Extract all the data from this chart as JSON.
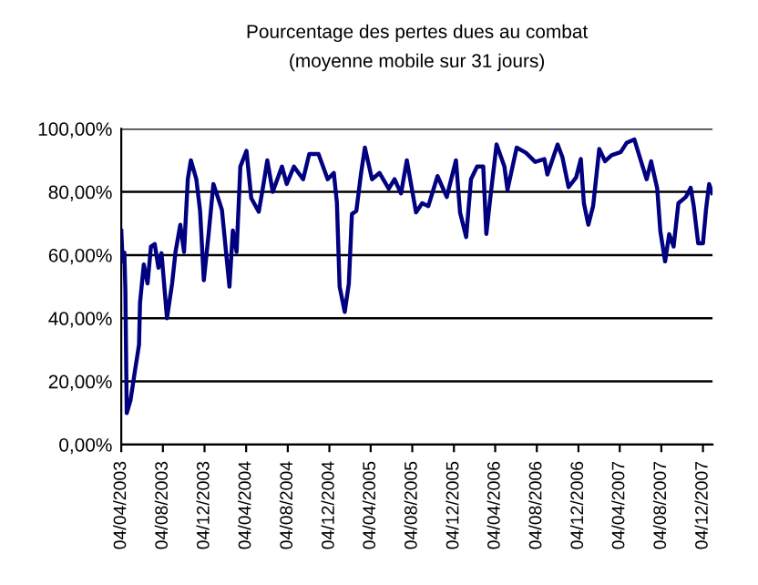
{
  "chart_data": {
    "type": "line",
    "title": "Pourcentage des pertes dues au combat",
    "subtitle": "(moyenne mobile sur 31 jours)",
    "x": [
      "2003-04-04",
      "2003-04-08",
      "2003-04-13",
      "2003-04-16",
      "2003-04-20",
      "2003-05-01",
      "2003-05-15",
      "2003-05-26",
      "2003-05-29",
      "2003-06-09",
      "2003-06-20",
      "2003-06-30",
      "2003-07-11",
      "2003-07-22",
      "2003-07-31",
      "2003-08-16",
      "2003-08-31",
      "2003-09-10",
      "2003-09-24",
      "2003-10-05",
      "2003-10-16",
      "2003-10-25",
      "2003-11-10",
      "2003-11-21",
      "2003-12-02",
      "2003-12-16",
      "2003-12-30",
      "2004-01-13",
      "2004-01-24",
      "2004-02-15",
      "2004-02-25",
      "2004-03-07",
      "2004-03-18",
      "2004-04-05",
      "2004-04-19",
      "2004-05-11",
      "2004-05-25",
      "2004-06-05",
      "2004-06-21",
      "2004-07-18",
      "2004-08-01",
      "2004-08-22",
      "2004-09-18",
      "2004-10-06",
      "2004-11-02",
      "2004-11-29",
      "2004-12-17",
      "2004-12-26",
      "2005-01-03",
      "2005-01-18",
      "2005-01-30",
      "2005-02-08",
      "2005-02-21",
      "2005-03-07",
      "2005-03-18",
      "2005-04-08",
      "2005-04-30",
      "2005-05-27",
      "2005-06-13",
      "2005-07-02",
      "2005-07-19",
      "2005-08-15",
      "2005-09-02",
      "2005-09-20",
      "2005-10-17",
      "2005-11-13",
      "2005-12-10",
      "2005-12-22",
      "2006-01-09",
      "2006-01-23",
      "2006-02-10",
      "2006-02-28",
      "2006-03-09",
      "2006-03-21",
      "2006-04-08",
      "2006-05-01",
      "2006-05-10",
      "2006-06-06",
      "2006-07-03",
      "2006-07-30",
      "2006-08-26",
      "2006-09-04",
      "2006-10-04",
      "2006-10-18",
      "2006-11-05",
      "2006-11-27",
      "2006-12-11",
      "2006-12-20",
      "2007-01-02",
      "2007-01-16",
      "2007-02-03",
      "2007-02-20",
      "2007-03-11",
      "2007-04-07",
      "2007-04-24",
      "2007-05-17",
      "2007-06-08",
      "2007-06-22",
      "2007-07-05",
      "2007-07-23",
      "2007-08-01",
      "2007-08-15",
      "2007-08-27",
      "2007-09-09",
      "2007-09-23",
      "2007-10-15",
      "2007-10-29",
      "2007-11-07",
      "2007-11-20",
      "2007-12-04",
      "2007-12-13",
      "2007-12-22",
      "2007-12-31"
    ],
    "series": [
      {
        "color": "#000080",
        "values": [
          67.7,
          58,
          60.8,
          49,
          10,
          14,
          24,
          31.6,
          45,
          57,
          51,
          62.7,
          63.5,
          56,
          60.6,
          40,
          51,
          61,
          69.6,
          61,
          84,
          90,
          84,
          74,
          52,
          66.7,
          82.5,
          78,
          74.3,
          50,
          67.8,
          61,
          88,
          93,
          78,
          73.7,
          82.5,
          90,
          80,
          88,
          82.5,
          88,
          84,
          92,
          92,
          84,
          86,
          76.6,
          50,
          42,
          51,
          73,
          74,
          86,
          94,
          84,
          86,
          81,
          84,
          79.5,
          90,
          73.5,
          76.4,
          75.5,
          85,
          78.4,
          90,
          73.5,
          65.7,
          84,
          88,
          88,
          66.7,
          78.4,
          95,
          88,
          80.7,
          94,
          92.4,
          89.5,
          90.4,
          85.5,
          95,
          91,
          81.5,
          84.5,
          90.4,
          76.4,
          69.6,
          75.5,
          93.6,
          89.7,
          91.6,
          92.6,
          95.5,
          96.6,
          88.8,
          84,
          89.7,
          81,
          67.6,
          58,
          66.6,
          62.7,
          76.4,
          78.4,
          81.3,
          75.5,
          63.7,
          63.7,
          74.5,
          82.5,
          79.6
        ]
      }
    ],
    "xlim": [
      "2003-04-04",
      "2008-01-01"
    ],
    "xticks": [
      {
        "value": "2003-04-04",
        "label": "04/04/2003"
      },
      {
        "value": "2003-08-04",
        "label": "04/08/2003"
      },
      {
        "value": "2003-12-04",
        "label": "04/12/2003"
      },
      {
        "value": "2004-04-04",
        "label": "04/04/2004"
      },
      {
        "value": "2004-08-04",
        "label": "04/08/2004"
      },
      {
        "value": "2004-12-04",
        "label": "04/12/2004"
      },
      {
        "value": "2005-04-04",
        "label": "04/04/2005"
      },
      {
        "value": "2005-08-04",
        "label": "04/08/2005"
      },
      {
        "value": "2005-12-04",
        "label": "04/12/2005"
      },
      {
        "value": "2006-04-04",
        "label": "04/04/2006"
      },
      {
        "value": "2006-08-04",
        "label": "04/08/2006"
      },
      {
        "value": "2006-12-04",
        "label": "04/12/2006"
      },
      {
        "value": "2007-04-04",
        "label": "04/04/2007"
      },
      {
        "value": "2007-08-04",
        "label": "04/08/2007"
      },
      {
        "value": "2007-12-04",
        "label": "04/12/2007"
      }
    ],
    "ylim": [
      0,
      100
    ],
    "yticks": [
      {
        "value": 0,
        "label": "0,00%"
      },
      {
        "value": 20,
        "label": "20,00%"
      },
      {
        "value": 40,
        "label": "40,00%"
      },
      {
        "value": 60,
        "label": "60,00%"
      },
      {
        "value": 80,
        "label": "80,00%"
      },
      {
        "value": 100,
        "label": "100,00%"
      }
    ],
    "grid": "y",
    "legend": false,
    "marker": "none",
    "line_style": "solid"
  }
}
